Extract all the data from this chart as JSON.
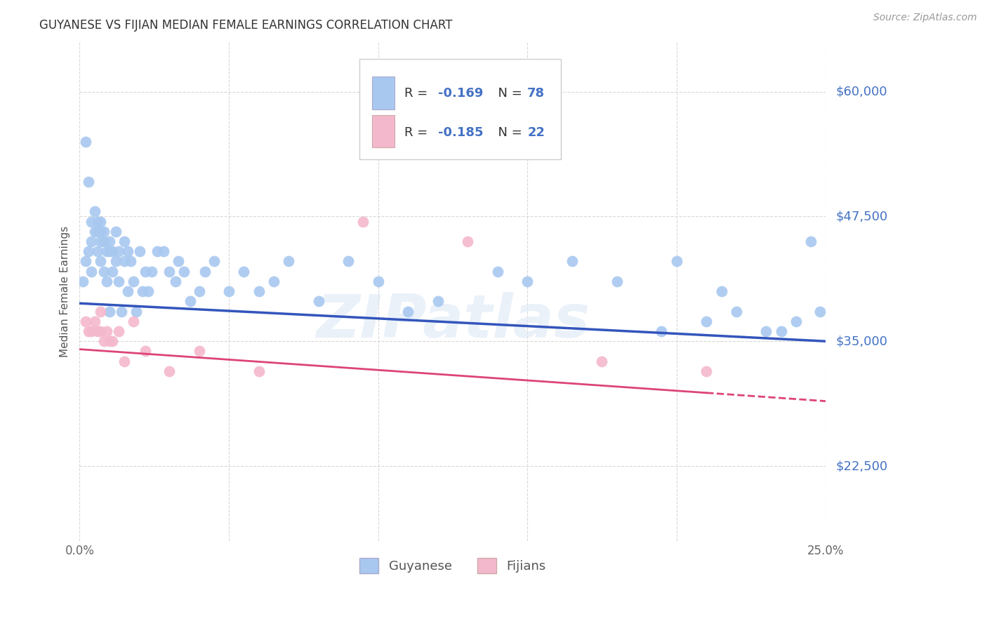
{
  "title": "GUYANESE VS FIJIAN MEDIAN FEMALE EARNINGS CORRELATION CHART",
  "source": "Source: ZipAtlas.com",
  "ylabel": "Median Female Earnings",
  "xlim": [
    0.0,
    0.25
  ],
  "ylim": [
    15000,
    65000
  ],
  "yticks": [
    22500,
    35000,
    47500,
    60000
  ],
  "ytick_labels": [
    "$22,500",
    "$35,000",
    "$47,500",
    "$60,000"
  ],
  "xticks": [
    0.0,
    0.05,
    0.1,
    0.15,
    0.2,
    0.25
  ],
  "xtick_labels": [
    "0.0%",
    "",
    "",
    "",
    "",
    "25.0%"
  ],
  "background_color": "#ffffff",
  "grid_color": "#d8d8d8",
  "blue_color": "#a8c8f0",
  "pink_color": "#f4b8cc",
  "blue_line_color": "#3355bb",
  "pink_line_color": "#dd4477",
  "title_color": "#333333",
  "axis_label_color": "#555555",
  "right_label_color": "#4472c4",
  "R_guyanese": -0.169,
  "N_guyanese": 78,
  "R_fijian": -0.185,
  "N_fijian": 22,
  "blue_line_x0": 0.0,
  "blue_line_y0": 38800,
  "blue_line_x1": 0.25,
  "blue_line_y1": 35000,
  "pink_line_x0": 0.0,
  "pink_line_y0": 34200,
  "pink_line_x1": 0.25,
  "pink_line_y1": 29000,
  "pink_line_solid_end": 0.21,
  "guyanese_x": [
    0.001,
    0.002,
    0.002,
    0.003,
    0.003,
    0.004,
    0.004,
    0.004,
    0.005,
    0.005,
    0.006,
    0.006,
    0.006,
    0.007,
    0.007,
    0.007,
    0.007,
    0.008,
    0.008,
    0.008,
    0.009,
    0.009,
    0.01,
    0.01,
    0.01,
    0.011,
    0.011,
    0.012,
    0.012,
    0.013,
    0.013,
    0.014,
    0.015,
    0.015,
    0.016,
    0.016,
    0.017,
    0.018,
    0.019,
    0.02,
    0.021,
    0.022,
    0.023,
    0.024,
    0.026,
    0.028,
    0.03,
    0.032,
    0.033,
    0.035,
    0.037,
    0.04,
    0.042,
    0.045,
    0.05,
    0.055,
    0.06,
    0.065,
    0.07,
    0.08,
    0.09,
    0.1,
    0.11,
    0.12,
    0.14,
    0.15,
    0.165,
    0.18,
    0.195,
    0.2,
    0.21,
    0.215,
    0.22,
    0.23,
    0.235,
    0.24,
    0.245,
    0.248
  ],
  "guyanese_y": [
    41000,
    55000,
    43000,
    51000,
    44000,
    47000,
    45000,
    42000,
    48000,
    46000,
    47000,
    46000,
    44000,
    47000,
    46000,
    45000,
    43000,
    46000,
    45000,
    42000,
    44000,
    41000,
    45000,
    44000,
    38000,
    44000,
    42000,
    46000,
    43000,
    44000,
    41000,
    38000,
    45000,
    43000,
    44000,
    40000,
    43000,
    41000,
    38000,
    44000,
    40000,
    42000,
    40000,
    42000,
    44000,
    44000,
    42000,
    41000,
    43000,
    42000,
    39000,
    40000,
    42000,
    43000,
    40000,
    42000,
    40000,
    41000,
    43000,
    39000,
    43000,
    41000,
    38000,
    39000,
    42000,
    41000,
    43000,
    41000,
    36000,
    43000,
    37000,
    40000,
    38000,
    36000,
    36000,
    37000,
    45000,
    38000
  ],
  "fijian_x": [
    0.002,
    0.003,
    0.004,
    0.005,
    0.006,
    0.007,
    0.007,
    0.008,
    0.009,
    0.01,
    0.011,
    0.013,
    0.015,
    0.018,
    0.022,
    0.03,
    0.04,
    0.06,
    0.095,
    0.13,
    0.175,
    0.21
  ],
  "fijian_y": [
    37000,
    36000,
    36000,
    37000,
    36000,
    38000,
    36000,
    35000,
    36000,
    35000,
    35000,
    36000,
    33000,
    37000,
    34000,
    32000,
    34000,
    32000,
    47000,
    45000,
    33000,
    32000
  ]
}
